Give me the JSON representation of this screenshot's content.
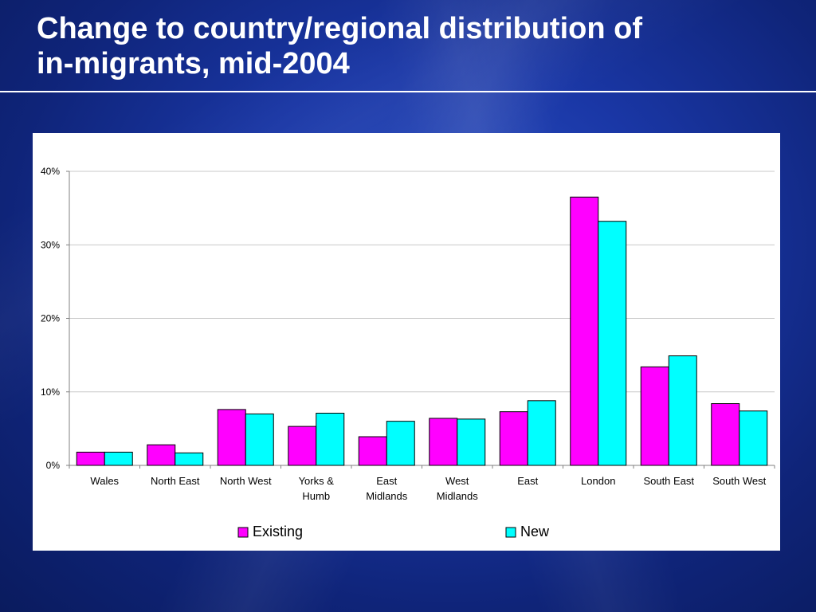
{
  "slide": {
    "title_line1": "Change to country/regional distribution of",
    "title_line2": "in-migrants, mid-2004"
  },
  "chart_data": {
    "type": "bar",
    "title": "",
    "xlabel": "",
    "ylabel": "",
    "categories": [
      [
        "Wales"
      ],
      [
        "North East"
      ],
      [
        "North West"
      ],
      [
        "Yorks &",
        "Humb"
      ],
      [
        "East",
        "Midlands"
      ],
      [
        "West",
        "Midlands"
      ],
      [
        "East"
      ],
      [
        "London"
      ],
      [
        "South East"
      ],
      [
        "South West"
      ]
    ],
    "series": [
      {
        "name": "Existing",
        "color": "#ff00ff",
        "values": [
          1.8,
          2.8,
          7.6,
          5.3,
          3.9,
          6.4,
          7.3,
          36.5,
          13.4,
          8.4
        ]
      },
      {
        "name": "New",
        "color": "#00ffff",
        "values": [
          1.8,
          1.7,
          7.0,
          7.1,
          6.0,
          6.3,
          8.8,
          33.2,
          14.9,
          7.4
        ]
      }
    ],
    "ylim": [
      0,
      40
    ],
    "yticks": [
      0,
      10,
      20,
      30,
      40
    ],
    "ytick_labels": [
      "0%",
      "10%",
      "20%",
      "30%",
      "40%"
    ],
    "grid": true,
    "legend_position": "bottom"
  }
}
